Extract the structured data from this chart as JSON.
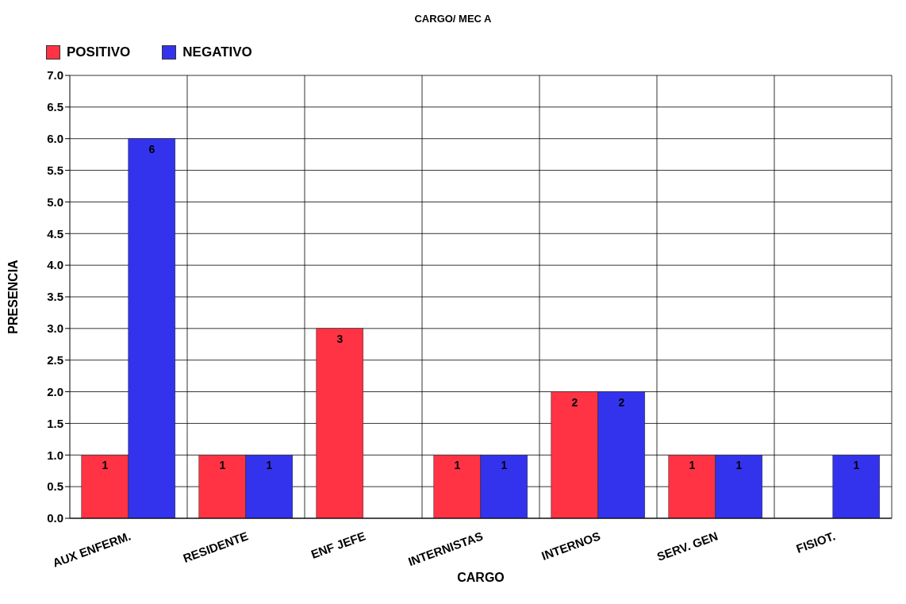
{
  "chart_data": {
    "type": "bar",
    "title": "CARGO/ MEC A",
    "xlabel": "CARGO",
    "ylabel": "PRESENCIA",
    "categories": [
      "AUX ENFERM.",
      "RESIDENTE",
      "ENF JEFE",
      "INTERNISTAS",
      "INTERNOS",
      "SERV. GEN",
      "FISIOT."
    ],
    "series": [
      {
        "name": "POSITIVO",
        "color": "#ff3344",
        "values": [
          1,
          1,
          3,
          1,
          2,
          1,
          0
        ],
        "value_labels": [
          "1",
          "1",
          "3",
          "1",
          "2",
          "1",
          null
        ]
      },
      {
        "name": "NEGATIVO",
        "color": "#3333ee",
        "values": [
          6,
          1,
          0,
          1,
          2,
          1,
          1
        ],
        "value_labels": [
          "6",
          "1",
          null,
          "1",
          "2",
          "1",
          "1"
        ]
      }
    ],
    "ylim": [
      0,
      7
    ],
    "yticks": [
      {
        "value": 0,
        "label": "0.0"
      },
      {
        "value": 0.5,
        "label": "0.5"
      },
      {
        "value": 1,
        "label": "1.0"
      },
      {
        "value": 1.5,
        "label": "1.5"
      },
      {
        "value": 2,
        "label": "2.0"
      },
      {
        "value": 2.5,
        "label": "2.5"
      },
      {
        "value": 3,
        "label": "3.0"
      },
      {
        "value": 3.5,
        "label": "3.5"
      },
      {
        "value": 4,
        "label": "4.0"
      },
      {
        "value": 4.5,
        "label": "4.5"
      },
      {
        "value": 5,
        "label": "5.0"
      },
      {
        "value": 5.5,
        "label": "5.5"
      },
      {
        "value": 6,
        "label": "6.0"
      },
      {
        "value": 6.5,
        "label": "6.5"
      },
      {
        "value": 7,
        "label": "7.0"
      }
    ],
    "grid": true,
    "legend": "top left"
  }
}
